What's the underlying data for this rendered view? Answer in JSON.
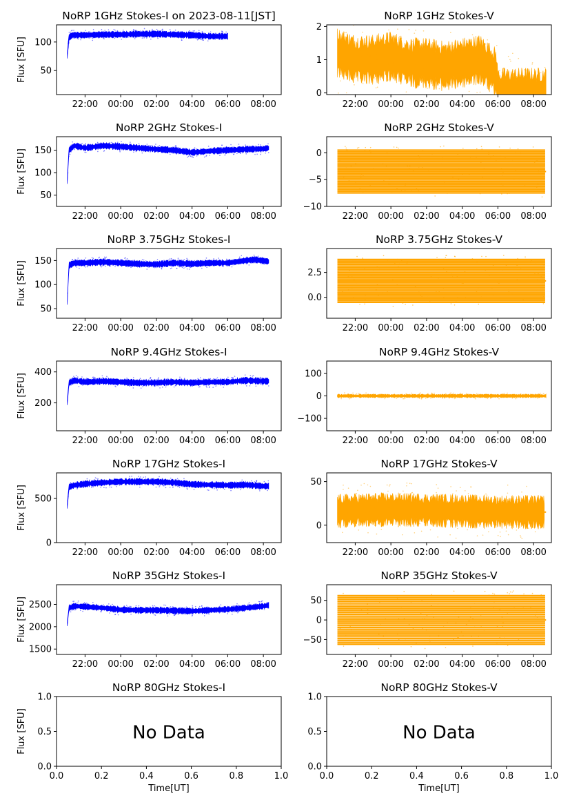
{
  "figure_title_note": "",
  "chart_data": [
    {
      "type": "scatter",
      "title": "NoRP 1GHz Stokes-I on 2023-08-11[JST]",
      "ylabel": "Flux [SFU]",
      "xlabel": "",
      "ylim": [
        8,
        130
      ],
      "yticks": [
        "50",
        "100"
      ],
      "ytick_values": [
        50,
        100
      ],
      "xticks": [
        "22:00",
        "00:00",
        "02:00",
        "04:00",
        "06:00",
        "08:00"
      ],
      "xtick_hours": [
        22,
        24,
        26,
        28,
        30,
        32
      ],
      "xlim_hours": [
        20.4,
        33.0
      ],
      "color": "#0000ff",
      "series": [
        {
          "x_hours": [
            21.0,
            21.1,
            21.3,
            22.0,
            23.0,
            24.0,
            25.0,
            26.0,
            27.0,
            28.0,
            29.0,
            30.0
          ],
          "y": [
            76,
            108,
            112,
            112,
            113,
            113,
            114,
            114,
            113,
            112,
            110,
            110
          ]
        }
      ],
      "data_end_hours": 30.0
    },
    {
      "type": "scatter",
      "title": "NoRP 1GHz Stokes-V",
      "ylabel": "",
      "xlabel": "",
      "ylim": [
        -0.05,
        2.05
      ],
      "yticks": [
        "0",
        "1",
        "2"
      ],
      "ytick_values": [
        0,
        1,
        2
      ],
      "xticks": [
        "22:00",
        "00:00",
        "02:00",
        "04:00",
        "06:00",
        "08:00"
      ],
      "xtick_hours": [
        22,
        24,
        26,
        28,
        30,
        32
      ],
      "xlim_hours": [
        20.4,
        33.0
      ],
      "color": "#ffa500",
      "series": [
        {
          "x_hours": [
            21.0,
            22.0,
            23.0,
            24.0,
            25.0,
            26.0,
            27.0,
            28.0,
            29.0,
            29.9,
            30.0,
            32.7
          ],
          "y": [
            1.2,
            1.0,
            1.0,
            1.1,
            0.9,
            0.9,
            0.8,
            0.9,
            1.0,
            0.6,
            0.0,
            0.0
          ]
        }
      ],
      "band": 0.55,
      "data_end_hours": 32.7
    },
    {
      "type": "scatter",
      "title": "NoRP 2GHz Stokes-I",
      "ylabel": "Flux [SFU]",
      "xlabel": "",
      "ylim": [
        25,
        180
      ],
      "yticks": [
        "50",
        "100",
        "150"
      ],
      "ytick_values": [
        50,
        100,
        150
      ],
      "xticks": [
        "22:00",
        "00:00",
        "02:00",
        "04:00",
        "06:00",
        "08:00"
      ],
      "xtick_hours": [
        22,
        24,
        26,
        28,
        30,
        32
      ],
      "xlim_hours": [
        20.4,
        33.0
      ],
      "color": "#0000ff",
      "series": [
        {
          "x_hours": [
            21.0,
            21.1,
            21.4,
            22.0,
            23.0,
            24.0,
            25.0,
            26.0,
            27.0,
            28.0,
            29.0,
            30.0,
            31.0,
            32.0,
            32.3
          ],
          "y": [
            80,
            150,
            160,
            155,
            160,
            158,
            155,
            152,
            150,
            145,
            148,
            150,
            152,
            153,
            155
          ]
        }
      ],
      "data_end_hours": 32.3
    },
    {
      "type": "scatter",
      "title": "NoRP 2GHz Stokes-V",
      "ylabel": "",
      "xlabel": "",
      "ylim": [
        -10,
        3
      ],
      "yticks": [
        "−10",
        "−5",
        "0"
      ],
      "ytick_values": [
        -10,
        -5,
        0
      ],
      "xticks": [
        "22:00",
        "00:00",
        "02:00",
        "04:00",
        "06:00",
        "08:00"
      ],
      "xtick_hours": [
        22,
        24,
        26,
        28,
        30,
        32
      ],
      "xlim_hours": [
        20.4,
        33.0
      ],
      "color": "#ffa500",
      "levels_range": [
        -7.5,
        0.5
      ],
      "data_end_hours": 32.7
    },
    {
      "type": "scatter",
      "title": "NoRP 3.75GHz Stokes-I",
      "ylabel": "Flux [SFU]",
      "xlabel": "",
      "ylim": [
        30,
        175
      ],
      "yticks": [
        "50",
        "100",
        "150"
      ],
      "ytick_values": [
        50,
        100,
        150
      ],
      "xticks": [
        "22:00",
        "00:00",
        "02:00",
        "04:00",
        "06:00",
        "08:00"
      ],
      "xtick_hours": [
        22,
        24,
        26,
        28,
        30,
        32
      ],
      "xlim_hours": [
        20.4,
        33.0
      ],
      "color": "#0000ff",
      "series": [
        {
          "x_hours": [
            21.0,
            21.1,
            21.4,
            22.0,
            23.0,
            24.0,
            25.0,
            26.0,
            27.0,
            28.0,
            29.0,
            30.0,
            31.0,
            31.5,
            32.3
          ],
          "y": [
            62,
            140,
            145,
            145,
            147,
            145,
            143,
            142,
            145,
            143,
            145,
            145,
            150,
            152,
            148
          ]
        }
      ],
      "data_end_hours": 32.3
    },
    {
      "type": "scatter",
      "title": "NoRP 3.75GHz Stokes-V",
      "ylabel": "",
      "xlabel": "",
      "ylim": [
        -2.1,
        4.9
      ],
      "yticks": [
        "0.0",
        "2.5"
      ],
      "ytick_values": [
        0,
        2.5
      ],
      "xticks": [
        "22:00",
        "00:00",
        "02:00",
        "04:00",
        "06:00",
        "08:00"
      ],
      "xtick_hours": [
        22,
        24,
        26,
        28,
        30,
        32
      ],
      "xlim_hours": [
        20.4,
        33.0
      ],
      "color": "#ffa500",
      "levels_range": [
        -0.5,
        3.8
      ],
      "data_end_hours": 32.7
    },
    {
      "type": "scatter",
      "title": "NoRP 9.4GHz Stokes-I",
      "ylabel": "Flux [SFU]",
      "xlabel": "",
      "ylim": [
        20,
        470
      ],
      "yticks": [
        "200",
        "400"
      ],
      "ytick_values": [
        200,
        400
      ],
      "xticks": [
        "22:00",
        "00:00",
        "02:00",
        "04:00",
        "06:00",
        "08:00"
      ],
      "xtick_hours": [
        22,
        24,
        26,
        28,
        30,
        32
      ],
      "xlim_hours": [
        20.4,
        33.0
      ],
      "color": "#0000ff",
      "series": [
        {
          "x_hours": [
            21.0,
            21.1,
            21.4,
            22.0,
            23.0,
            24.0,
            25.0,
            26.0,
            27.0,
            28.0,
            29.0,
            30.0,
            31.0,
            32.0,
            32.3
          ],
          "y": [
            200,
            330,
            345,
            335,
            340,
            335,
            330,
            330,
            335,
            330,
            335,
            335,
            345,
            340,
            340
          ]
        }
      ],
      "data_end_hours": 32.3
    },
    {
      "type": "scatter",
      "title": "NoRP 9.4GHz Stokes-V",
      "ylabel": "",
      "xlabel": "",
      "ylim": [
        -155,
        155
      ],
      "yticks": [
        "−100",
        "0",
        "100"
      ],
      "ytick_values": [
        -100,
        0,
        100
      ],
      "xticks": [
        "22:00",
        "00:00",
        "02:00",
        "04:00",
        "06:00",
        "08:00"
      ],
      "xtick_hours": [
        22,
        24,
        26,
        28,
        30,
        32
      ],
      "xlim_hours": [
        20.4,
        33.0
      ],
      "color": "#ffa500",
      "series": [
        {
          "x_hours": [
            21.0,
            32.7
          ],
          "y": [
            0,
            0
          ]
        }
      ],
      "band": 6,
      "data_end_hours": 32.7
    },
    {
      "type": "scatter",
      "title": "NoRP 17GHz Stokes-I",
      "ylabel": "Flux [SFU]",
      "xlabel": "",
      "ylim": [
        0,
        790
      ],
      "yticks": [
        "0",
        "500"
      ],
      "ytick_values": [
        0,
        500
      ],
      "xticks": [
        "22:00",
        "00:00",
        "02:00",
        "04:00",
        "06:00",
        "08:00"
      ],
      "xtick_hours": [
        22,
        24,
        26,
        28,
        30,
        32
      ],
      "xlim_hours": [
        20.4,
        33.0
      ],
      "color": "#0000ff",
      "series": [
        {
          "x_hours": [
            21.0,
            21.1,
            21.4,
            22.0,
            23.0,
            24.0,
            25.0,
            26.0,
            27.0,
            28.0,
            29.0,
            30.0,
            31.0,
            32.0,
            32.3
          ],
          "y": [
            410,
            630,
            650,
            665,
            680,
            690,
            690,
            690,
            680,
            660,
            655,
            650,
            655,
            640,
            640
          ]
        }
      ],
      "data_end_hours": 32.3
    },
    {
      "type": "scatter",
      "title": "NoRP 17GHz Stokes-V",
      "ylabel": "",
      "xlabel": "",
      "ylim": [
        -20,
        60
      ],
      "yticks": [
        "0",
        "50"
      ],
      "ytick_values": [
        0,
        50
      ],
      "xticks": [
        "22:00",
        "00:00",
        "02:00",
        "04:00",
        "06:00",
        "08:00"
      ],
      "xtick_hours": [
        22,
        24,
        26,
        28,
        30,
        32
      ],
      "xlim_hours": [
        20.4,
        33.0
      ],
      "color": "#ffa500",
      "series": [
        {
          "x_hours": [
            21.0,
            22.0,
            24.0,
            26.0,
            28.0,
            30.0,
            32.0,
            32.6
          ],
          "y": [
            16,
            17,
            18,
            17,
            16,
            15,
            15,
            15
          ]
        }
      ],
      "band": 14,
      "data_end_hours": 32.7
    },
    {
      "type": "scatter",
      "title": "NoRP 35GHz Stokes-I",
      "ylabel": "Flux [SFU]",
      "xlabel": "",
      "ylim": [
        1380,
        2940
      ],
      "yticks": [
        "1500",
        "2000",
        "2500"
      ],
      "ytick_values": [
        1500,
        2000,
        2500
      ],
      "xticks": [
        "22:00",
        "00:00",
        "02:00",
        "04:00",
        "06:00",
        "08:00"
      ],
      "xtick_hours": [
        22,
        24,
        26,
        28,
        30,
        32
      ],
      "xlim_hours": [
        20.4,
        33.0
      ],
      "color": "#0000ff",
      "series": [
        {
          "x_hours": [
            21.0,
            21.1,
            21.4,
            22.0,
            23.0,
            24.0,
            25.0,
            26.0,
            27.0,
            28.0,
            29.0,
            30.0,
            31.0,
            32.0,
            32.3
          ],
          "y": [
            2050,
            2420,
            2460,
            2450,
            2420,
            2380,
            2370,
            2370,
            2360,
            2350,
            2370,
            2390,
            2420,
            2460,
            2480
          ]
        }
      ],
      "data_end_hours": 32.3
    },
    {
      "type": "scatter",
      "title": "NoRP 35GHz Stokes-V",
      "ylabel": "",
      "xlabel": "",
      "ylim": [
        -88,
        90
      ],
      "yticks": [
        "−50",
        "0",
        "50"
      ],
      "ytick_values": [
        -50,
        0,
        50
      ],
      "xticks": [
        "22:00",
        "00:00",
        "02:00",
        "04:00",
        "06:00",
        "08:00"
      ],
      "xtick_hours": [
        22,
        24,
        26,
        28,
        30,
        32
      ],
      "xlim_hours": [
        20.4,
        33.0
      ],
      "color": "#ffa500",
      "levels_range": [
        -62,
        62
      ],
      "data_end_hours": 32.7
    },
    {
      "type": "scatter",
      "title": "NoRP 80GHz Stokes-I",
      "ylabel": "Flux [SFU]",
      "xlabel": "Time[UT]",
      "ylim": [
        0,
        1
      ],
      "yticks": [
        "0.0",
        "0.5",
        "1.0"
      ],
      "ytick_values": [
        0,
        0.5,
        1.0
      ],
      "xticks": [
        "0.0",
        "0.2",
        "0.4",
        "0.6",
        "0.8",
        "1.0"
      ],
      "xtick_values": [
        0,
        0.2,
        0.4,
        0.6,
        0.8,
        1.0
      ],
      "xlim": [
        0,
        1
      ],
      "annotation": "No Data"
    },
    {
      "type": "scatter",
      "title": "NoRP 80GHz Stokes-V",
      "ylabel": "",
      "xlabel": "Time[UT]",
      "ylim": [
        0,
        1
      ],
      "yticks": [
        "0.0",
        "0.5",
        "1.0"
      ],
      "ytick_values": [
        0,
        0.5,
        1.0
      ],
      "xticks": [
        "0.0",
        "0.2",
        "0.4",
        "0.6",
        "0.8",
        "1.0"
      ],
      "xtick_values": [
        0,
        0.2,
        0.4,
        0.6,
        0.8,
        1.0
      ],
      "xlim": [
        0,
        1
      ],
      "annotation": "No Data"
    }
  ]
}
